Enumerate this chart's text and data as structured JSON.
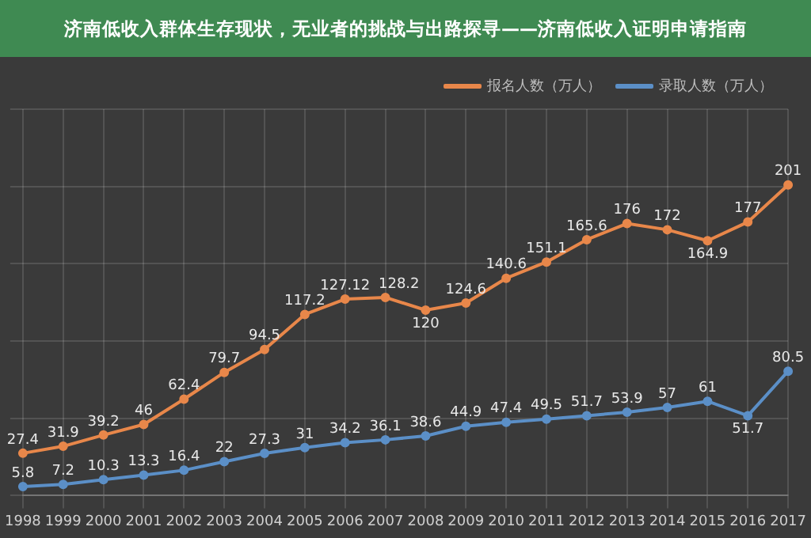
{
  "chart_data": {
    "type": "line",
    "title": "济南低收入群体生存现状，无业者的挑战与出路探寻——济南低收入证明申请指南",
    "categories": [
      "1998",
      "1999",
      "2000",
      "2001",
      "2002",
      "2003",
      "2004",
      "2005",
      "2006",
      "2007",
      "2008",
      "2009",
      "2010",
      "2011",
      "2012",
      "2013",
      "2014",
      "2015",
      "2016",
      "2017"
    ],
    "series": [
      {
        "name": "报名人数（万人）",
        "color": "#e8874a",
        "values": [
          27.4,
          31.9,
          39.2,
          46,
          62.4,
          79.7,
          94.5,
          117.2,
          127.12,
          128.2,
          120,
          124.6,
          140.6,
          151.1,
          165.6,
          176,
          172,
          164.9,
          177,
          201
        ]
      },
      {
        "name": "录取人数（万人）",
        "color": "#5b8fc7",
        "values": [
          5.8,
          7.2,
          10.3,
          13.3,
          16.4,
          22,
          27.3,
          31,
          34.2,
          36.1,
          38.6,
          44.9,
          47.4,
          49.5,
          51.7,
          53.9,
          57,
          61,
          51.7,
          80.5
        ]
      }
    ],
    "data_labels": true,
    "grid": true,
    "legend": "top right",
    "tick_labels": "x",
    "marker": "circle",
    "line_style": "solid"
  }
}
